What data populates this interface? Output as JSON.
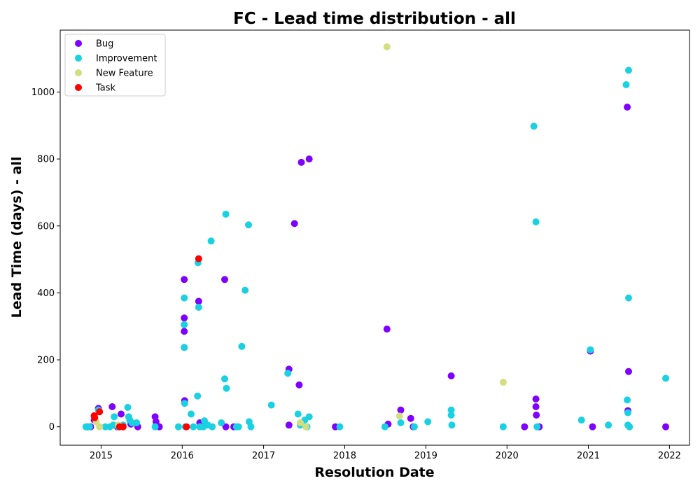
{
  "chart_data": {
    "type": "scatter",
    "title": "FC - Lead time distribution - all",
    "xlabel": "Resolution Date",
    "ylabel": "Lead Time (days) - all",
    "xlim": [
      "2014-07-01",
      "2022-04-01"
    ],
    "ylim": [
      -55,
      1185
    ],
    "x_ticks": [
      "2015",
      "2016",
      "2017",
      "2018",
      "2019",
      "2020",
      "2021",
      "2022"
    ],
    "y_ticks": [
      0,
      200,
      400,
      600,
      800,
      1000
    ],
    "grid": false,
    "legend_position": "top-left",
    "series": [
      {
        "name": "Bug",
        "color": "#8000ff",
        "points": [
          [
            "2014-11-01",
            0
          ],
          [
            "2014-11-15",
            0
          ],
          [
            "2014-12-01",
            20
          ],
          [
            "2014-12-20",
            55
          ],
          [
            "2015-02-20",
            60
          ],
          [
            "2015-03-15",
            0
          ],
          [
            "2015-04-01",
            38
          ],
          [
            "2015-05-15",
            8
          ],
          [
            "2015-06-15",
            0
          ],
          [
            "2015-09-01",
            30
          ],
          [
            "2015-09-05",
            15
          ],
          [
            "2015-09-20",
            0
          ],
          [
            "2016-01-10",
            440
          ],
          [
            "2016-01-10",
            325
          ],
          [
            "2016-01-10",
            285
          ],
          [
            "2016-01-10",
            237
          ],
          [
            "2016-01-12",
            78
          ],
          [
            "2016-03-15",
            375
          ],
          [
            "2016-03-20",
            12
          ],
          [
            "2016-07-10",
            440
          ],
          [
            "2016-07-15",
            0
          ],
          [
            "2016-08-20",
            0
          ],
          [
            "2017-04-25",
            172
          ],
          [
            "2017-04-25",
            5
          ],
          [
            "2017-05-20",
            607
          ],
          [
            "2017-06-10",
            125
          ],
          [
            "2017-06-20",
            790
          ],
          [
            "2017-07-25",
            800
          ],
          [
            "2017-11-20",
            0
          ],
          [
            "2018-07-10",
            292
          ],
          [
            "2018-07-15",
            8
          ],
          [
            "2018-09-10",
            50
          ],
          [
            "2018-10-25",
            25
          ],
          [
            "2018-11-05",
            0
          ],
          [
            "2019-04-25",
            152
          ],
          [
            "2020-03-20",
            0
          ],
          [
            "2020-05-10",
            83
          ],
          [
            "2020-05-10",
            60
          ],
          [
            "2020-05-12",
            35
          ],
          [
            "2020-05-25",
            0
          ],
          [
            "2021-01-10",
            226
          ],
          [
            "2021-01-20",
            0
          ],
          [
            "2021-06-25",
            955
          ],
          [
            "2021-06-28",
            48
          ],
          [
            "2021-07-01",
            165
          ],
          [
            "2021-12-15",
            0
          ]
        ]
      },
      {
        "name": "Improvement",
        "color": "#1ad1e2",
        "points": [
          [
            "2014-10-25",
            0
          ],
          [
            "2014-11-10",
            0
          ],
          [
            "2014-12-20",
            50
          ],
          [
            "2015-01-20",
            0
          ],
          [
            "2015-02-10",
            0
          ],
          [
            "2015-02-25",
            5
          ],
          [
            "2015-03-01",
            30
          ],
          [
            "2015-03-20",
            0
          ],
          [
            "2015-04-10",
            5
          ],
          [
            "2015-05-01",
            58
          ],
          [
            "2015-05-05",
            30
          ],
          [
            "2015-05-10",
            20
          ],
          [
            "2015-05-20",
            12
          ],
          [
            "2015-06-10",
            12
          ],
          [
            "2015-09-01",
            0
          ],
          [
            "2015-12-15",
            0
          ],
          [
            "2016-01-10",
            385
          ],
          [
            "2016-01-10",
            305
          ],
          [
            "2016-01-10",
            237
          ],
          [
            "2016-01-12",
            70
          ],
          [
            "2016-01-15",
            0
          ],
          [
            "2016-02-10",
            38
          ],
          [
            "2016-02-20",
            0
          ],
          [
            "2016-03-10",
            92
          ],
          [
            "2016-03-12",
            490
          ],
          [
            "2016-03-15",
            357
          ],
          [
            "2016-03-20",
            0
          ],
          [
            "2016-04-05",
            0
          ],
          [
            "2016-04-10",
            18
          ],
          [
            "2016-04-25",
            5
          ],
          [
            "2016-05-10",
            555
          ],
          [
            "2016-05-15",
            0
          ],
          [
            "2016-06-25",
            12
          ],
          [
            "2016-07-10",
            143
          ],
          [
            "2016-07-15",
            635
          ],
          [
            "2016-07-18",
            115
          ],
          [
            "2016-09-01",
            0
          ],
          [
            "2016-09-10",
            0
          ],
          [
            "2016-09-25",
            240
          ],
          [
            "2016-10-10",
            408
          ],
          [
            "2016-10-25",
            603
          ],
          [
            "2016-10-28",
            15
          ],
          [
            "2016-11-05",
            0
          ],
          [
            "2017-02-05",
            65
          ],
          [
            "2017-04-20",
            160
          ],
          [
            "2017-06-05",
            38
          ],
          [
            "2017-06-15",
            5
          ],
          [
            "2017-07-05",
            20
          ],
          [
            "2017-07-15",
            0
          ],
          [
            "2017-07-25",
            30
          ],
          [
            "2017-12-10",
            0
          ],
          [
            "2018-07-01",
            0
          ],
          [
            "2018-09-10",
            12
          ],
          [
            "2018-11-10",
            0
          ],
          [
            "2019-01-10",
            15
          ],
          [
            "2019-04-25",
            50
          ],
          [
            "2019-04-25",
            35
          ],
          [
            "2019-04-28",
            5
          ],
          [
            "2019-12-15",
            0
          ],
          [
            "2020-05-01",
            898
          ],
          [
            "2020-05-10",
            612
          ],
          [
            "2020-05-15",
            0
          ],
          [
            "2020-12-01",
            20
          ],
          [
            "2021-01-10",
            230
          ],
          [
            "2021-04-01",
            5
          ],
          [
            "2021-06-20",
            1022
          ],
          [
            "2021-06-25",
            80
          ],
          [
            "2021-06-28",
            42
          ],
          [
            "2021-06-28",
            5
          ],
          [
            "2021-07-01",
            1065
          ],
          [
            "2021-07-01",
            385
          ],
          [
            "2021-07-05",
            0
          ],
          [
            "2021-12-15",
            145
          ]
        ]
      },
      {
        "name": "New Feature",
        "color": "#d4dd80",
        "points": [
          [
            "2014-12-10",
            15
          ],
          [
            "2014-12-25",
            0
          ],
          [
            "2015-03-20",
            5
          ],
          [
            "2017-06-15",
            12
          ],
          [
            "2017-07-10",
            0
          ],
          [
            "2018-07-10",
            1135
          ],
          [
            "2018-09-05",
            32
          ],
          [
            "2019-12-15",
            133
          ]
        ]
      },
      {
        "name": "Task",
        "color": "#ff0000",
        "points": [
          [
            "2014-12-01",
            33
          ],
          [
            "2014-12-03",
            27
          ],
          [
            "2014-12-25",
            45
          ],
          [
            "2015-03-25",
            0
          ],
          [
            "2015-04-10",
            0
          ],
          [
            "2016-01-20",
            0
          ],
          [
            "2016-03-15",
            502
          ]
        ]
      }
    ]
  }
}
